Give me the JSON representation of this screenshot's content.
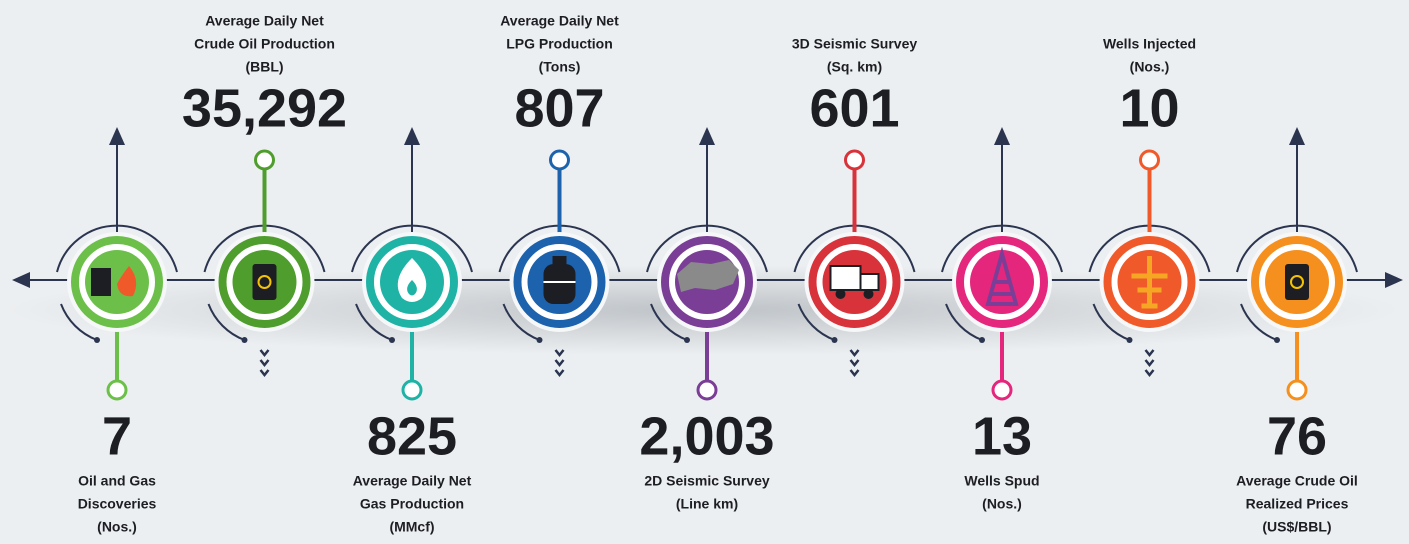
{
  "items": [
    {
      "lines": [
        "Oil and Gas",
        "Discoveries",
        "(Nos.)"
      ],
      "value": "7",
      "color": "#6cc04a"
    },
    {
      "lines": [
        "Average Daily Net",
        "Crude Oil Production",
        "(BBL)"
      ],
      "value": "35,292",
      "color": "#4f9e2d"
    },
    {
      "lines": [
        "Average Daily Net",
        "Gas Production",
        "(MMcf)"
      ],
      "value": "825",
      "color": "#1fb3a6"
    },
    {
      "lines": [
        "Average Daily Net",
        "LPG Production",
        "(Tons)"
      ],
      "value": "807",
      "color": "#1c62ad"
    },
    {
      "lines": [
        "2D Seismic Survey",
        "(Line km)"
      ],
      "value": "2,003",
      "color": "#7a3e96"
    },
    {
      "lines": [
        "3D Seismic Survey",
        "(Sq. km)"
      ],
      "value": "601",
      "color": "#d8323a"
    },
    {
      "lines": [
        "Wells Spud",
        "(Nos.)"
      ],
      "value": "13",
      "color": "#e4267c"
    },
    {
      "lines": [
        "Wells Injected",
        "(Nos.)"
      ],
      "value": "10",
      "color": "#f05a2a"
    },
    {
      "lines": [
        "Average Crude Oil",
        "Realized Prices",
        "(US$/BBL)"
      ],
      "value": "76",
      "color": "#f5901e"
    }
  ]
}
